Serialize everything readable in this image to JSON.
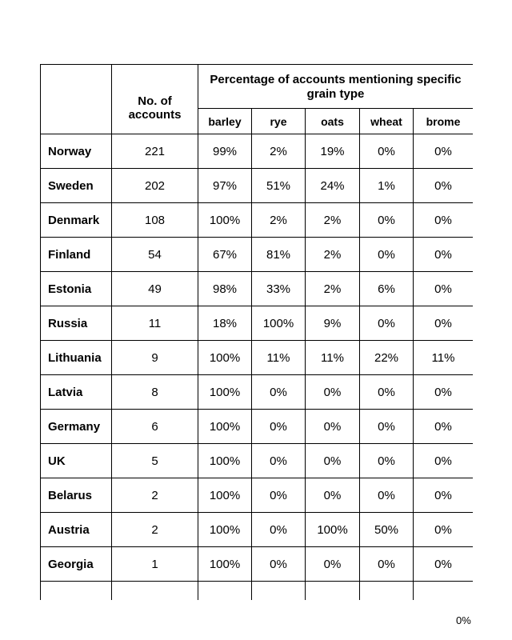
{
  "table": {
    "header_accounts": "No. of accounts",
    "header_percentage": "Percentage of accounts mentioning specific grain type",
    "grains": [
      "barley",
      "rye",
      "oats",
      "wheat",
      "brome"
    ],
    "rows": [
      {
        "country": "Norway",
        "accounts": "221",
        "values": [
          "99%",
          "2%",
          "19%",
          "0%",
          "0%"
        ]
      },
      {
        "country": "Sweden",
        "accounts": "202",
        "values": [
          "97%",
          "51%",
          "24%",
          "1%",
          "0%"
        ]
      },
      {
        "country": "Denmark",
        "accounts": "108",
        "values": [
          "100%",
          "2%",
          "2%",
          "0%",
          "0%"
        ]
      },
      {
        "country": "Finland",
        "accounts": "54",
        "values": [
          "67%",
          "81%",
          "2%",
          "0%",
          "0%"
        ]
      },
      {
        "country": "Estonia",
        "accounts": "49",
        "values": [
          "98%",
          "33%",
          "2%",
          "6%",
          "0%"
        ]
      },
      {
        "country": "Russia",
        "accounts": "11",
        "values": [
          "18%",
          "100%",
          "9%",
          "0%",
          "0%"
        ]
      },
      {
        "country": "Lithuania",
        "accounts": "9",
        "values": [
          "100%",
          "11%",
          "11%",
          "22%",
          "11%"
        ]
      },
      {
        "country": "Latvia",
        "accounts": "8",
        "values": [
          "100%",
          "0%",
          "0%",
          "0%",
          "0%"
        ]
      },
      {
        "country": "Germany",
        "accounts": "6",
        "values": [
          "100%",
          "0%",
          "0%",
          "0%",
          "0%"
        ]
      },
      {
        "country": "UK",
        "accounts": "5",
        "values": [
          "100%",
          "0%",
          "0%",
          "0%",
          "0%"
        ]
      },
      {
        "country": "Belarus",
        "accounts": "2",
        "values": [
          "100%",
          "0%",
          "0%",
          "0%",
          "0%"
        ]
      },
      {
        "country": "Austria",
        "accounts": "2",
        "values": [
          "100%",
          "0%",
          "100%",
          "50%",
          "0%"
        ]
      },
      {
        "country": "Georgia",
        "accounts": "1",
        "values": [
          "100%",
          "0%",
          "0%",
          "0%",
          "0%"
        ]
      }
    ]
  },
  "footer_value": "0%"
}
